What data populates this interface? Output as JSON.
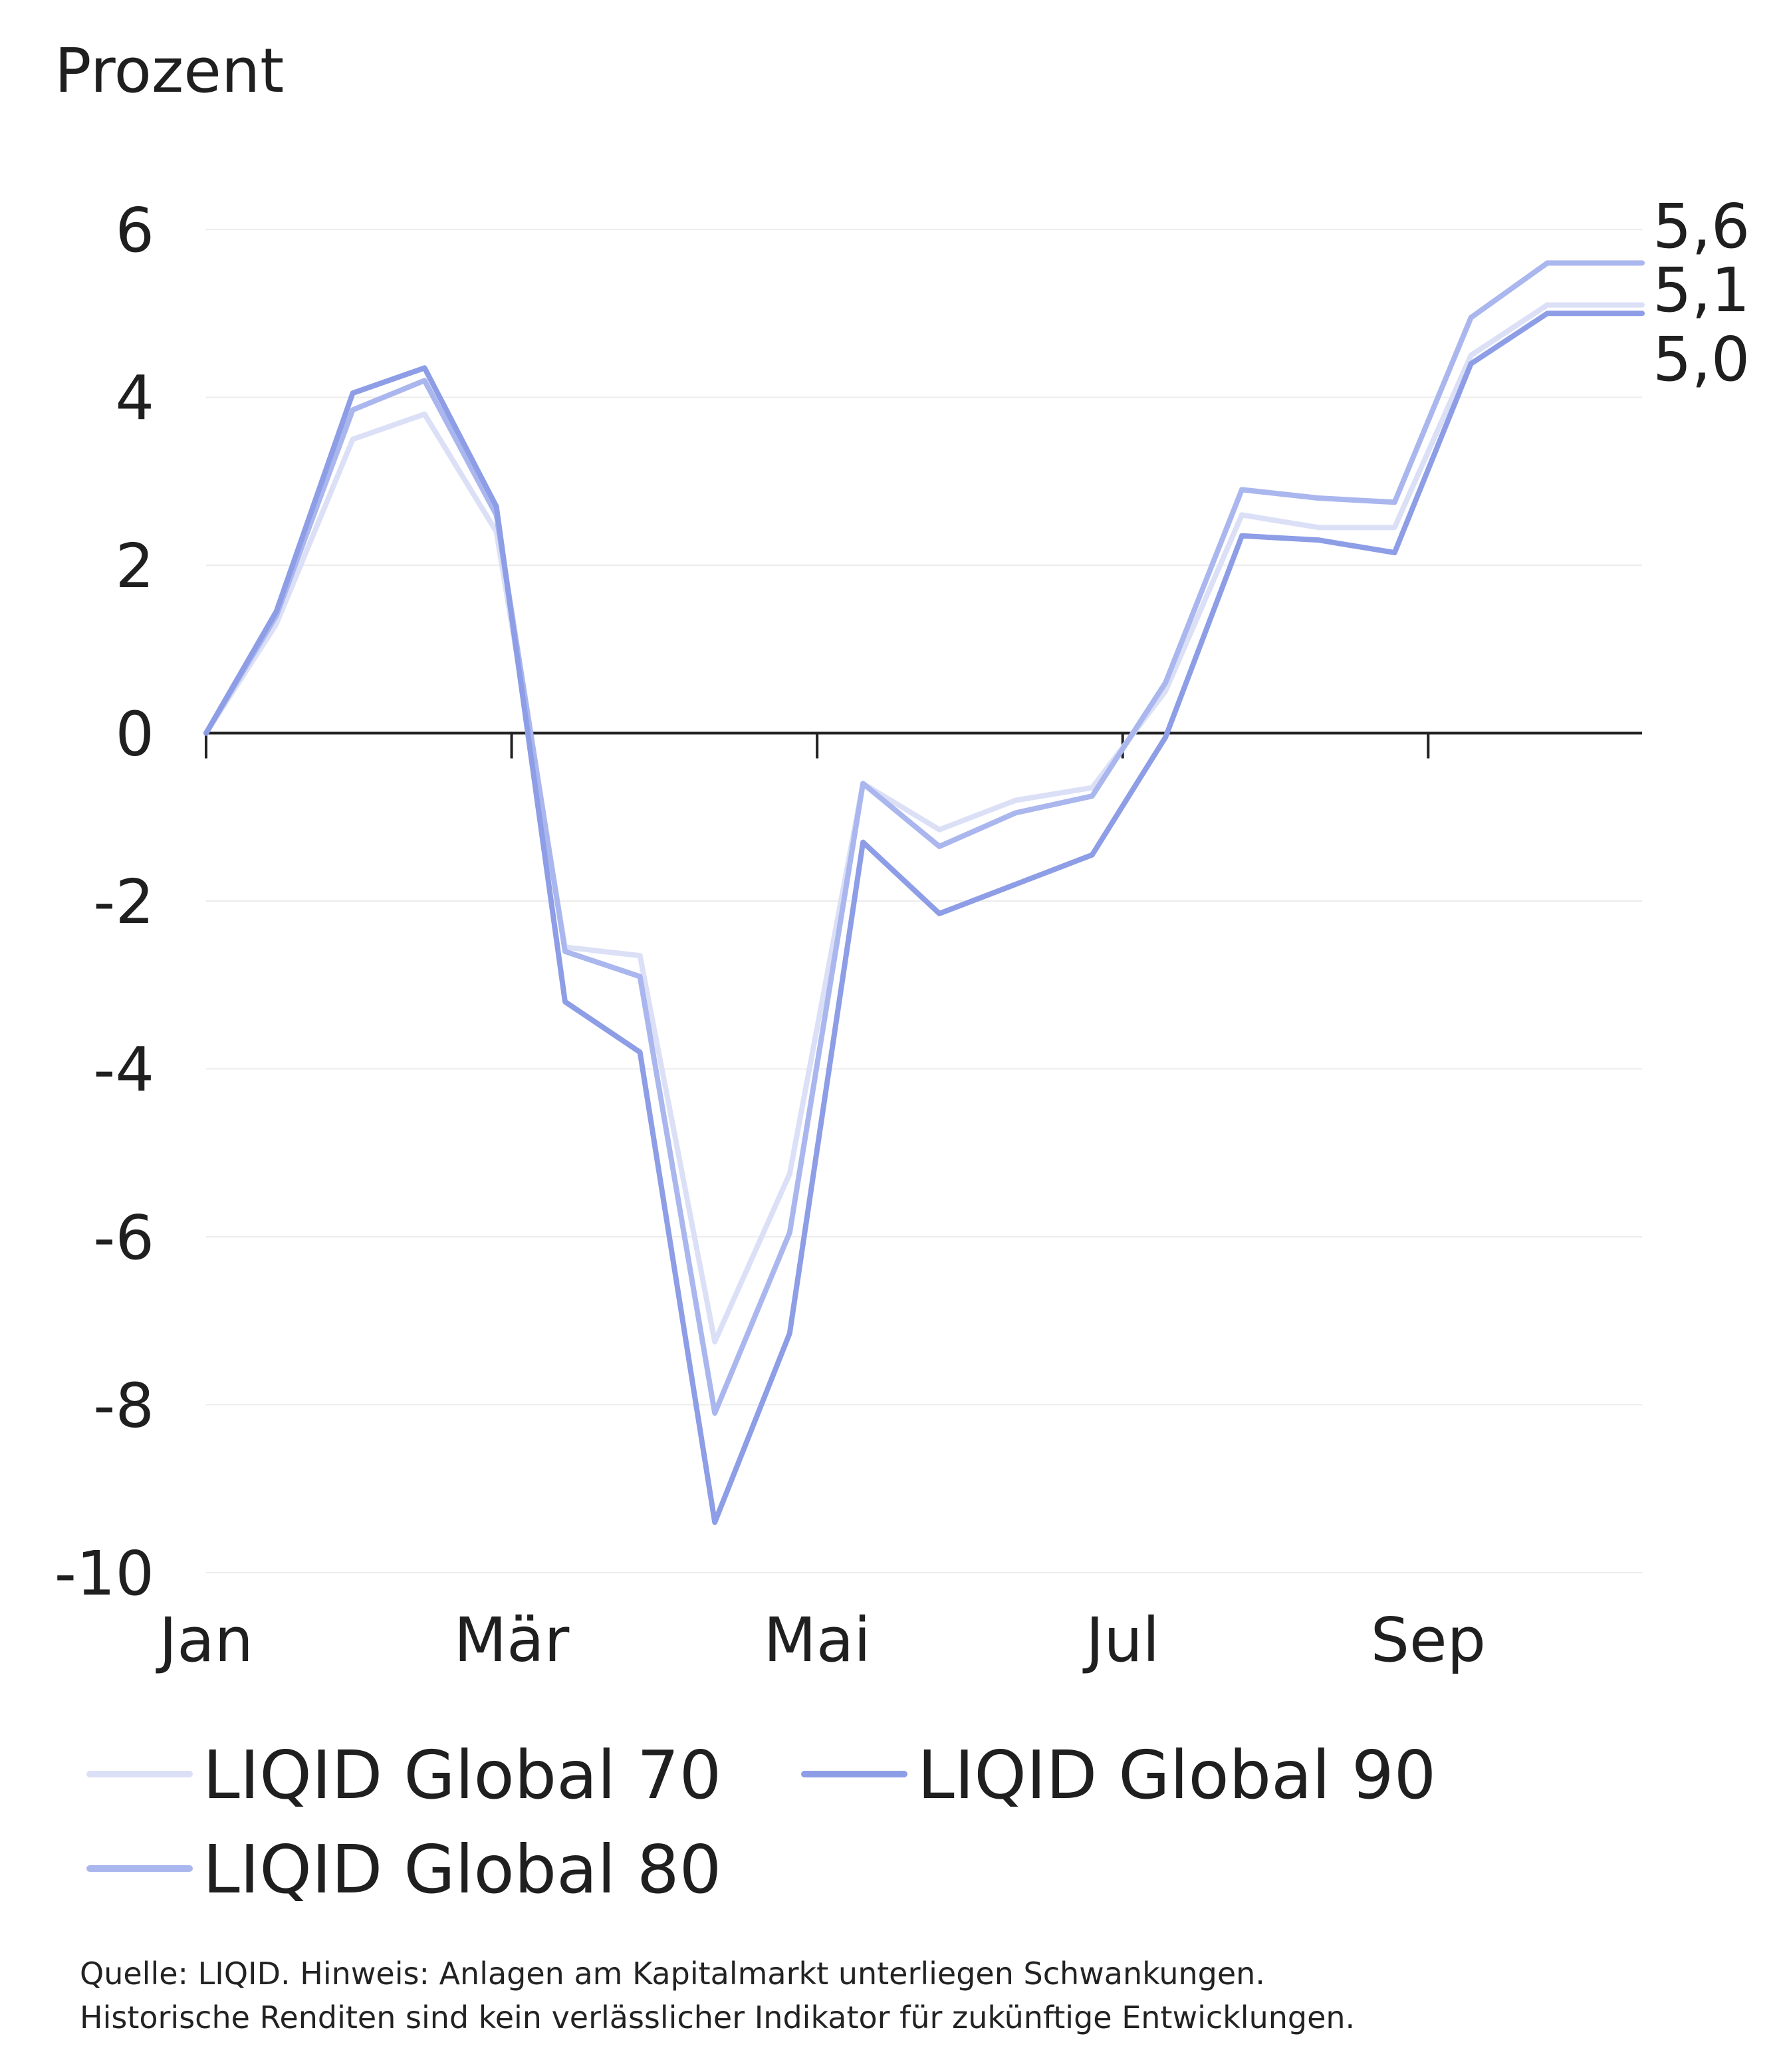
{
  "chart_data": {
    "type": "line",
    "ylabel": "Prozent",
    "ylim": [
      -10,
      6
    ],
    "yticks": [
      6,
      4,
      2,
      0,
      -2,
      -4,
      -6,
      -8,
      -10
    ],
    "ytick_labels": [
      "6",
      "4",
      "2",
      "0",
      "-2",
      "-4",
      "-6",
      "-8",
      "-10"
    ],
    "xlim": [
      0,
      9.4
    ],
    "xticks": [
      0,
      2,
      4,
      6,
      8
    ],
    "xtick_labels": [
      "Jan",
      "Mär",
      "Mai",
      "Jul",
      "Sep"
    ],
    "grid": true,
    "legend_position": "bottom",
    "x": [
      0,
      0.46,
      0.96,
      1.43,
      1.9,
      2.35,
      2.84,
      3.33,
      3.82,
      4.3,
      4.8,
      5.3,
      5.8,
      6.28,
      6.78,
      7.28,
      7.78,
      8.28,
      8.78,
      9.4
    ],
    "series": [
      {
        "name": "LIQID Global 70",
        "color": "#dbe0f7",
        "values": [
          0,
          1.3,
          3.5,
          3.8,
          2.4,
          -2.55,
          -2.65,
          -7.25,
          -5.25,
          -0.6,
          -1.15,
          -0.8,
          -0.65,
          0.5,
          2.6,
          2.45,
          2.45,
          4.5,
          5.1,
          5.1
        ]
      },
      {
        "name": "LIQID Global 80",
        "color": "#aab6ee",
        "values": [
          0,
          1.4,
          3.85,
          4.2,
          2.6,
          -2.6,
          -2.9,
          -8.1,
          -5.95,
          -0.6,
          -1.35,
          -0.95,
          -0.75,
          0.6,
          2.9,
          2.8,
          2.75,
          4.95,
          5.6,
          5.6
        ]
      },
      {
        "name": "LIQID Global 90",
        "color": "#8d9de6",
        "values": [
          0,
          1.45,
          4.05,
          4.35,
          2.7,
          -3.2,
          -3.8,
          -9.4,
          -7.15,
          -1.3,
          -2.15,
          -1.8,
          -1.45,
          -0.05,
          2.35,
          2.3,
          2.15,
          4.4,
          5.0,
          5.0
        ]
      }
    ],
    "end_labels": [
      "5,6",
      "5,1",
      "5,0"
    ],
    "source_note": [
      "Quelle: LIQID. Hinweis: Anlagen am Kapitalmarkt unterliegen Schwankungen.",
      "Historische Renditen sind kein verlässlicher Indikator für zukünftige Entwicklungen."
    ]
  }
}
